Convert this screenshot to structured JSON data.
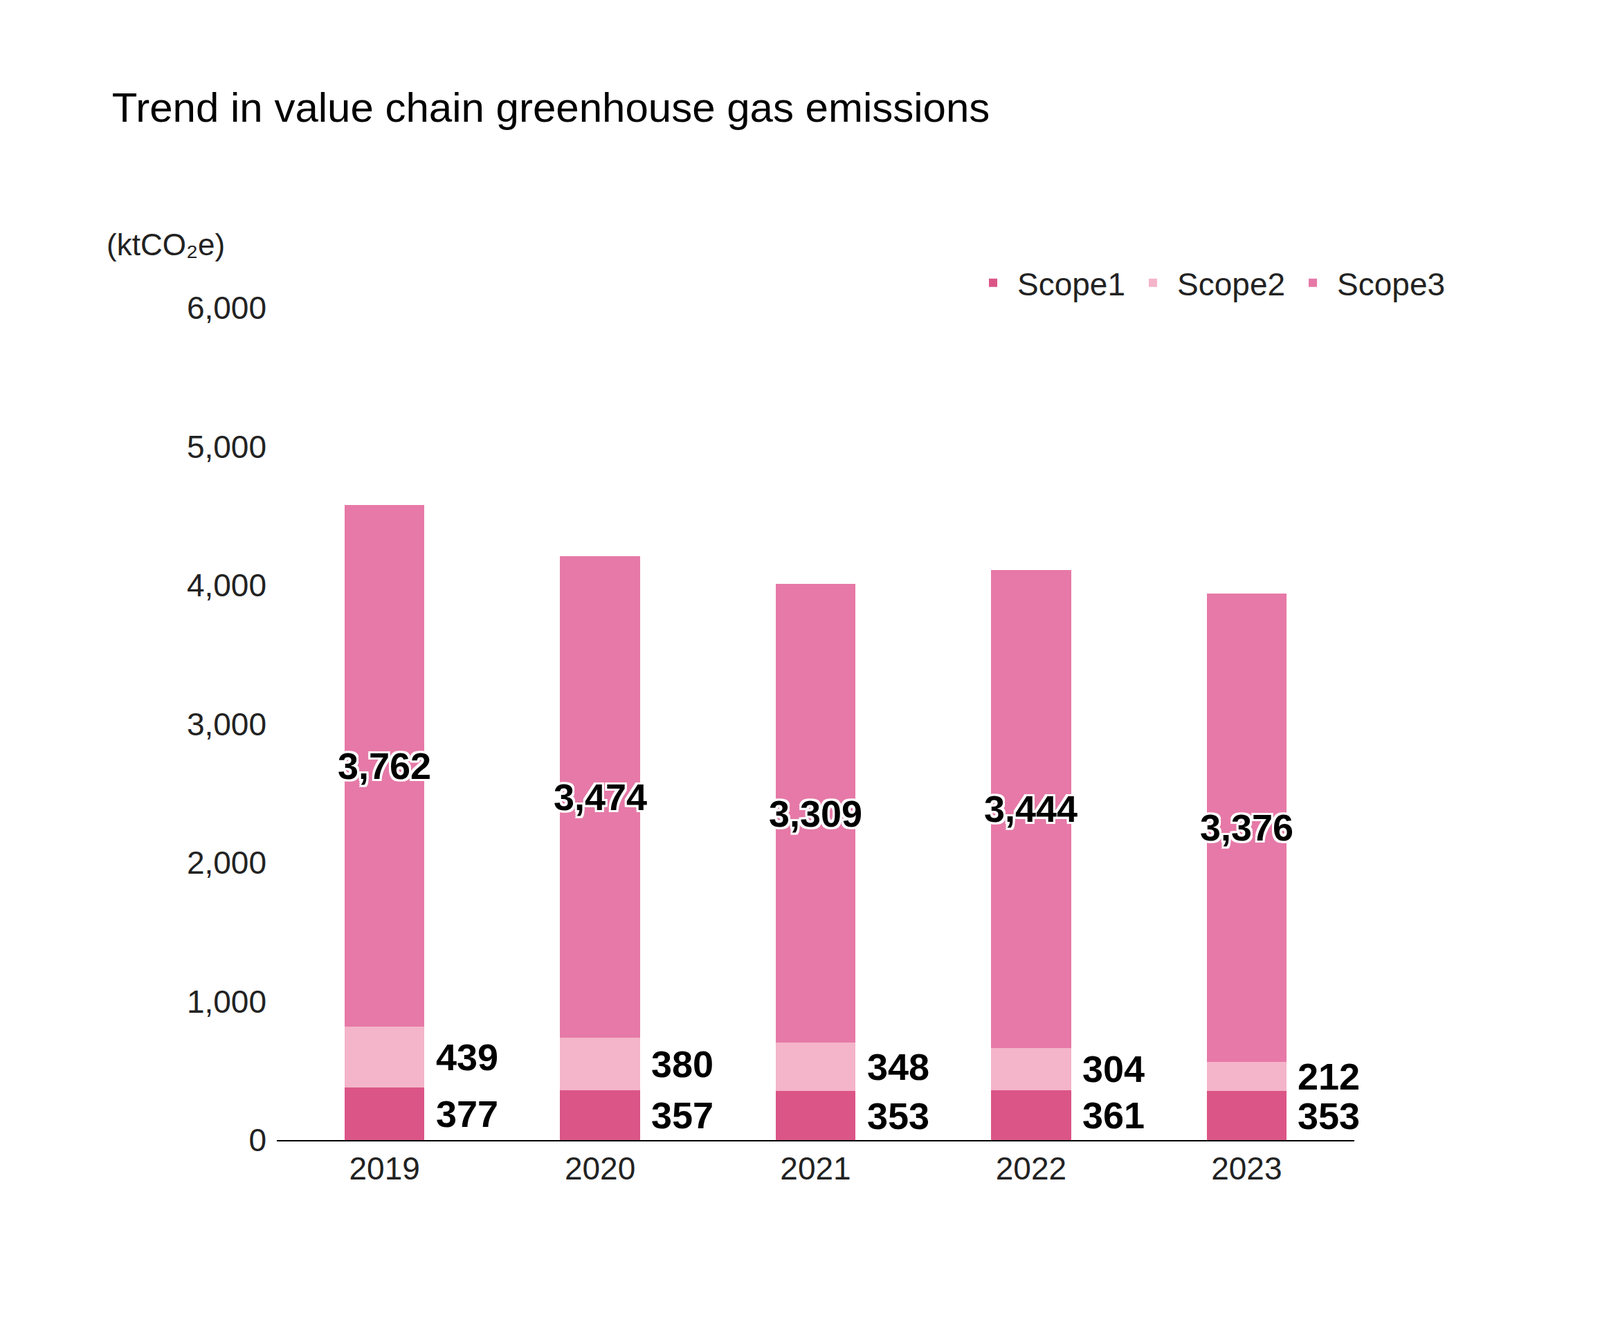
{
  "chart_data": {
    "type": "bar",
    "title": "Trend in value chain greenhouse gas emissions",
    "y_label": "(ktCO₂e)",
    "categories": [
      "2019",
      "2020",
      "2021",
      "2022",
      "2023"
    ],
    "stacked": true,
    "data_labels": true,
    "legend": "top right",
    "grid": false,
    "series": [
      {
        "name": "Scope1",
        "color": "#db5587",
        "values": [
          377,
          357,
          353,
          361,
          353
        ]
      },
      {
        "name": "Scope2",
        "color": "#f4b4c9",
        "values": [
          439,
          380,
          348,
          304,
          212
        ]
      },
      {
        "name": "Scope3",
        "color": "#e679a7",
        "values": [
          3762,
          3474,
          3309,
          3444,
          3376
        ],
        "value_labels": [
          "3,762",
          "3,474",
          "3,309",
          "3,444",
          "3,376"
        ]
      }
    ],
    "ylim": [
      0,
      6000
    ],
    "yticks": [
      0,
      {
        "value": 1000,
        "label": "1,000"
      },
      {
        "value": 2000,
        "label": "2,000"
      },
      {
        "value": 3000,
        "label": "3,000"
      },
      {
        "value": 4000,
        "label": "4,000"
      },
      {
        "value": 5000,
        "label": "5,000"
      },
      {
        "value": 6000,
        "label": "6,000"
      }
    ]
  }
}
